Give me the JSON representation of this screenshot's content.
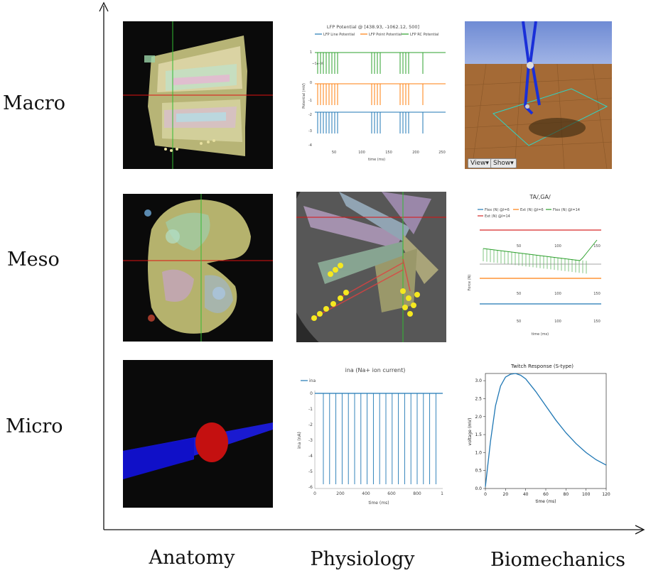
{
  "rows": [
    "Macro",
    "Meso",
    "Micro"
  ],
  "columns": [
    "Anatomy",
    "Physiology",
    "Biomechanics"
  ],
  "macro_physiology": {
    "title": "LFP Potential @ [438.93, -1062.12, 500]",
    "legend": [
      "LFP Line Potential",
      "LFP Point Potential",
      "LFP RC Potential"
    ],
    "ylabel": "Potential (mV)",
    "xlabel": "time (ms)",
    "yticks": [
      "1",
      "0",
      "-1",
      "-2",
      "-3",
      "-4"
    ],
    "xticks": [
      "50",
      "100",
      "150",
      "200",
      "250"
    ],
    "offset_label": "~5e-09",
    "colors": [
      "#1f77b4",
      "#ff7f0e",
      "#2ca02c"
    ]
  },
  "macro_biomech": {
    "view_button": "View",
    "show_button": "Show"
  },
  "meso_biomech": {
    "title": "TA/,GA/",
    "legend": [
      "Flex (N) @l=6",
      "Ext (N) @l=6",
      "Flex (N) @l=14",
      "Ext (N) @l=14"
    ],
    "ylabel": "Force (N)",
    "xlabel": "time (ms)",
    "xticks": [
      "50",
      "100",
      "150"
    ],
    "colors": [
      "#1f77b4",
      "#ff7f0e",
      "#2ca02c",
      "#d62728"
    ]
  },
  "micro_physiology": {
    "title": "ina (Na+ ion current)",
    "legend": [
      "ina"
    ],
    "ylabel": "ina (nA)",
    "xlabel": "time (ms)",
    "yticks": [
      "0",
      "-1",
      "-2",
      "-3",
      "-4",
      "-5",
      "-6"
    ],
    "xticks": [
      "0",
      "200",
      "400",
      "600",
      "800",
      "1"
    ]
  },
  "chart_data": [
    {
      "type": "line",
      "title": "Twitch Response (S-type)",
      "xlabel": "time (ms)",
      "ylabel": "voltage (mV)",
      "xlim": [
        0,
        120
      ],
      "ylim": [
        0,
        3.2
      ],
      "x": [
        0,
        5,
        10,
        15,
        20,
        25,
        30,
        35,
        40,
        50,
        60,
        70,
        80,
        90,
        100,
        110,
        120
      ],
      "series": [
        {
          "values": [
            0.05,
            1.3,
            2.3,
            2.85,
            3.1,
            3.18,
            3.2,
            3.15,
            3.05,
            2.7,
            2.3,
            1.9,
            1.55,
            1.25,
            1.0,
            0.8,
            0.65
          ]
        }
      ],
      "xticks": [
        "0",
        "20",
        "40",
        "60",
        "80",
        "100",
        "120"
      ],
      "yticks": [
        "0.0",
        "0.5",
        "1.0",
        "1.5",
        "2.0",
        "2.5",
        "3.0"
      ],
      "color": "#1f77b4"
    }
  ]
}
